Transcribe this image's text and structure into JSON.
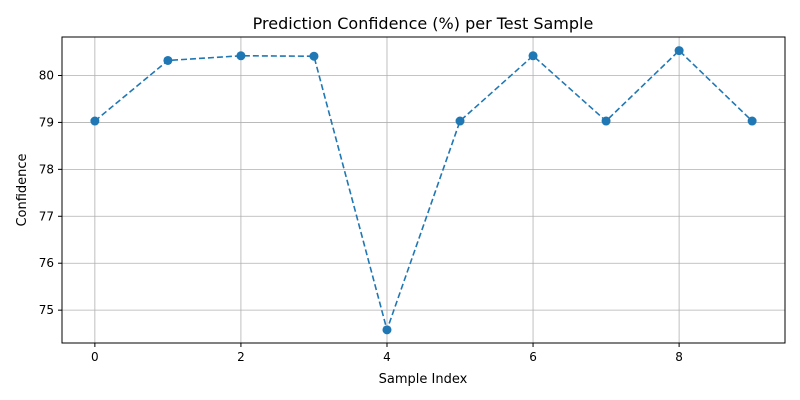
{
  "chart_data": {
    "type": "line",
    "title": "Prediction Confidence (%) per Test Sample",
    "xlabel": "Sample Index",
    "ylabel": "Confidence",
    "x": [
      0,
      1,
      2,
      3,
      4,
      5,
      6,
      7,
      8,
      9
    ],
    "series": [
      {
        "values": [
          79.03,
          80.32,
          80.42,
          80.41,
          74.58,
          79.03,
          80.42,
          79.03,
          80.53,
          79.03
        ],
        "color": "#1f77b4",
        "line_style": "dashed",
        "marker": "circle"
      }
    ],
    "xlim": [
      -0.45,
      9.45
    ],
    "ylim": [
      74.3,
      80.82
    ],
    "xticks": [
      0,
      2,
      4,
      6,
      8
    ],
    "yticks": [
      75,
      76,
      77,
      78,
      79,
      80
    ],
    "grid": true,
    "legend": "none"
  }
}
